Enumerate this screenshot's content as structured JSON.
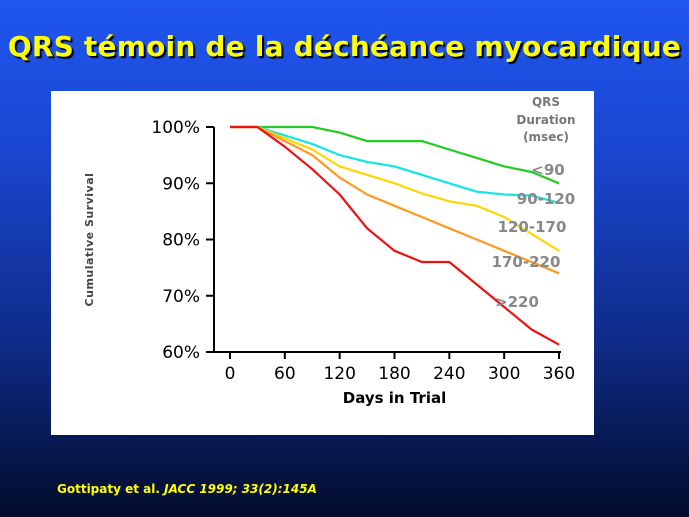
{
  "slide": {
    "title": "QRS témoin de la déchéance myocardique",
    "citation_authors": "Gottipaty et al.",
    "citation_journal": "JACC",
    "citation_ref": "1999; 33(2):145A"
  },
  "colors": {
    "background": "#1a46cf",
    "title": "#ffff00",
    "citation": "#ffff00"
  },
  "chart_data": {
    "type": "line",
    "title": "",
    "xlabel": "Days in Trial",
    "ylabel": "Cumulative Survival",
    "xlim": [
      0,
      360
    ],
    "ylim": [
      60,
      100
    ],
    "x_ticks": [
      0,
      60,
      120,
      180,
      240,
      300,
      360
    ],
    "y_ticks": [
      60,
      70,
      80,
      90,
      100
    ],
    "y_tick_labels": [
      "60%",
      "70%",
      "80%",
      "90%",
      "100%"
    ],
    "grid": false,
    "legend_title": [
      "QRS",
      "Duration",
      "(msec)"
    ],
    "series": [
      {
        "name": "<90",
        "color": "#22cc22",
        "points": [
          [
            0,
            100
          ],
          [
            30,
            100
          ],
          [
            90,
            100
          ],
          [
            120,
            99
          ],
          [
            150,
            97.5
          ],
          [
            210,
            97.5
          ],
          [
            240,
            96
          ],
          [
            270,
            94.5
          ],
          [
            300,
            93
          ],
          [
            330,
            92
          ],
          [
            360,
            90
          ]
        ]
      },
      {
        "name": "90-120",
        "color": "#11e6e6",
        "points": [
          [
            0,
            100
          ],
          [
            30,
            100
          ],
          [
            60,
            98.5
          ],
          [
            90,
            97
          ],
          [
            120,
            95
          ],
          [
            150,
            93.8
          ],
          [
            180,
            93
          ],
          [
            210,
            91.5
          ],
          [
            240,
            90
          ],
          [
            270,
            88.5
          ],
          [
            300,
            88
          ],
          [
            330,
            87.8
          ],
          [
            360,
            86.5
          ]
        ]
      },
      {
        "name": "120-170",
        "color": "#ffd700",
        "points": [
          [
            0,
            100
          ],
          [
            30,
            100
          ],
          [
            60,
            98
          ],
          [
            90,
            96
          ],
          [
            120,
            93
          ],
          [
            150,
            91.5
          ],
          [
            180,
            90
          ],
          [
            210,
            88.2
          ],
          [
            240,
            86.8
          ],
          [
            270,
            86
          ],
          [
            300,
            84
          ],
          [
            330,
            81
          ],
          [
            360,
            78
          ]
        ]
      },
      {
        "name": "170-220",
        "color": "#ff9922",
        "points": [
          [
            0,
            100
          ],
          [
            30,
            100
          ],
          [
            60,
            97.5
          ],
          [
            90,
            95
          ],
          [
            120,
            91
          ],
          [
            150,
            88
          ],
          [
            180,
            86
          ],
          [
            210,
            84
          ],
          [
            240,
            82
          ],
          [
            270,
            80
          ],
          [
            300,
            78
          ],
          [
            330,
            76
          ],
          [
            360,
            74
          ]
        ]
      },
      {
        "name": ">220",
        "color": "#ee1111",
        "points": [
          [
            0,
            100
          ],
          [
            30,
            100
          ],
          [
            60,
            96.5
          ],
          [
            90,
            92.5
          ],
          [
            120,
            88
          ],
          [
            150,
            82
          ],
          [
            180,
            78
          ],
          [
            210,
            76
          ],
          [
            240,
            76
          ],
          [
            270,
            72
          ],
          [
            300,
            68
          ],
          [
            330,
            64
          ],
          [
            360,
            61.3
          ]
        ]
      }
    ]
  }
}
